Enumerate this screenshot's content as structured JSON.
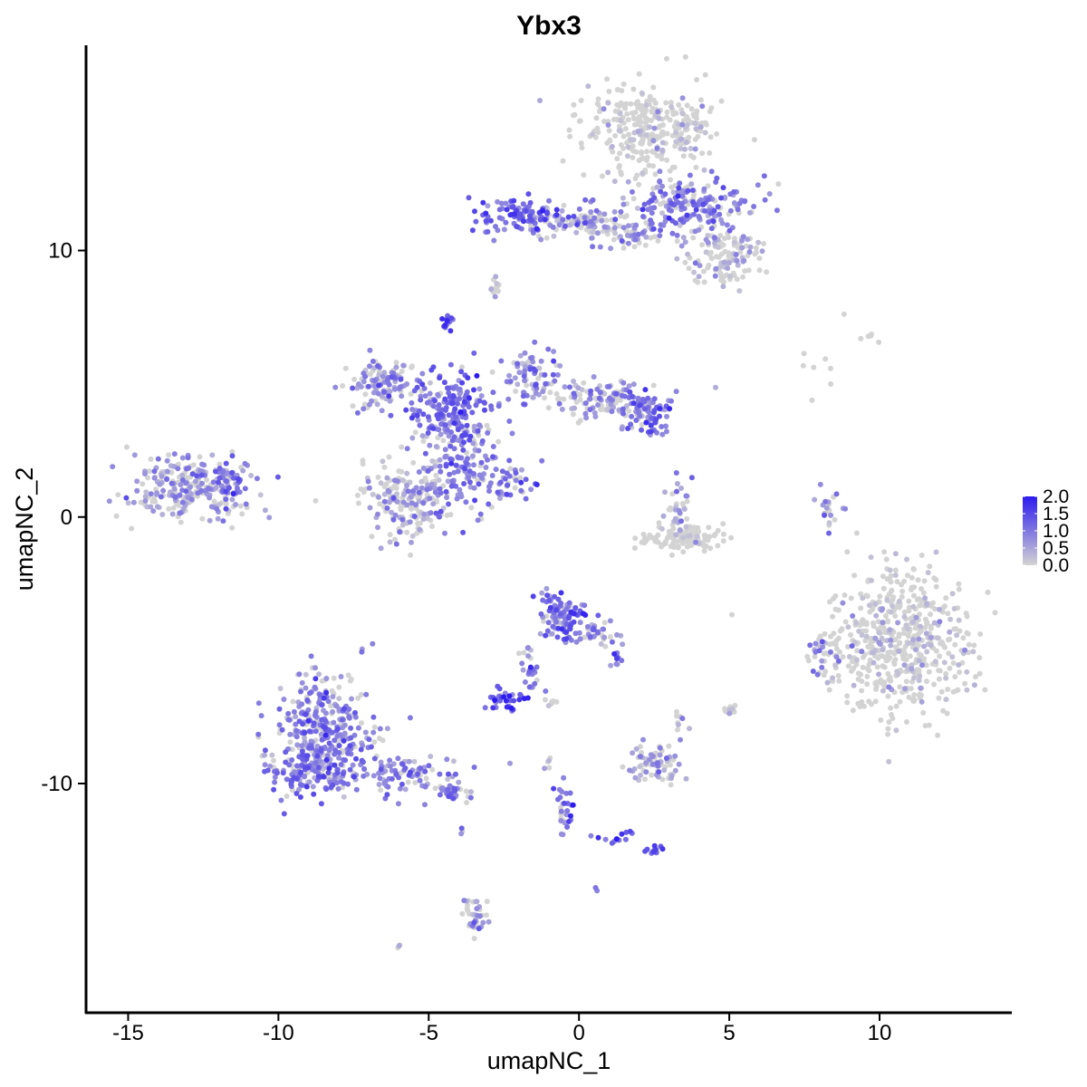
{
  "chart_data": {
    "type": "scatter",
    "title": "Ybx3",
    "xlabel": "umapNC_1",
    "ylabel": "umapNC_2",
    "xlim": [
      -16.4,
      14.4
    ],
    "ylim": [
      -18.6,
      17.7
    ],
    "x_ticks": [
      {
        "value": -15,
        "label": "-15"
      },
      {
        "value": -10,
        "label": "-10"
      },
      {
        "value": -5,
        "label": "-5"
      },
      {
        "value": 0,
        "label": "0"
      },
      {
        "value": 5,
        "label": "5"
      },
      {
        "value": 10,
        "label": "10"
      }
    ],
    "y_ticks": [
      {
        "value": -10,
        "label": "-10"
      },
      {
        "value": 0,
        "label": "0"
      },
      {
        "value": 10,
        "label": "10"
      }
    ],
    "color_scale": {
      "low": "#D3D3D3",
      "high": "#2D1BEF",
      "min": 0,
      "max": 2.0,
      "ticks": [
        {
          "value": 0.0,
          "label": "0.0"
        },
        {
          "value": 0.5,
          "label": "0.5"
        },
        {
          "value": 1.0,
          "label": "1.0"
        },
        {
          "value": 1.5,
          "label": "1.5"
        },
        {
          "value": 2.0,
          "label": "2.0"
        }
      ]
    },
    "legend_position": "right",
    "grid": false,
    "clusters": [
      {
        "cx": 2.3,
        "cy": 14.5,
        "sx": 1.2,
        "sy": 1.0,
        "n": 320,
        "mean": 0.15
      },
      {
        "cx": 3.8,
        "cy": 11.7,
        "sx": 1.3,
        "sy": 0.6,
        "n": 200,
        "mean": 0.9
      },
      {
        "cx": 4.8,
        "cy": 9.7,
        "sx": 0.7,
        "sy": 0.6,
        "n": 120,
        "mean": 0.4
      },
      {
        "cx": -1.8,
        "cy": 11.3,
        "sx": 0.9,
        "sy": 0.35,
        "n": 120,
        "mean": 1.1
      },
      {
        "cx": 0.5,
        "cy": 11.0,
        "sx": 0.9,
        "sy": 0.25,
        "n": 80,
        "mean": 0.6
      },
      {
        "cx": 1.8,
        "cy": 10.5,
        "sx": 0.6,
        "sy": 0.3,
        "n": 40,
        "mean": 0.7
      },
      {
        "cx": -2.8,
        "cy": 8.6,
        "sx": 0.1,
        "sy": 0.25,
        "n": 12,
        "mean": 0.3
      },
      {
        "cx": -4.4,
        "cy": 7.3,
        "sx": 0.12,
        "sy": 0.15,
        "n": 18,
        "mean": 1.3
      },
      {
        "cx": -6.6,
        "cy": 5.0,
        "sx": 0.7,
        "sy": 0.5,
        "n": 120,
        "mean": 0.7
      },
      {
        "cx": -4.2,
        "cy": 4.1,
        "sx": 0.8,
        "sy": 0.8,
        "n": 180,
        "mean": 1.1
      },
      {
        "cx": -3.8,
        "cy": 1.8,
        "sx": 0.8,
        "sy": 1.0,
        "n": 160,
        "mean": 0.9
      },
      {
        "cx": -5.7,
        "cy": 0.6,
        "sx": 0.8,
        "sy": 0.8,
        "n": 200,
        "mean": 0.55
      },
      {
        "cx": -1.5,
        "cy": 5.3,
        "sx": 0.5,
        "sy": 0.6,
        "n": 70,
        "mean": 0.8
      },
      {
        "cx": 0.8,
        "cy": 4.4,
        "sx": 1.1,
        "sy": 0.4,
        "n": 120,
        "mean": 0.7
      },
      {
        "cx": 2.2,
        "cy": 4.0,
        "sx": 0.5,
        "sy": 0.5,
        "n": 80,
        "mean": 1.0
      },
      {
        "cx": -2.3,
        "cy": 1.2,
        "sx": 0.5,
        "sy": 0.4,
        "n": 25,
        "mean": 0.9
      },
      {
        "cx": -13.0,
        "cy": 1.1,
        "sx": 1.1,
        "sy": 0.6,
        "n": 250,
        "mean": 0.65
      },
      {
        "cx": -11.7,
        "cy": 1.3,
        "sx": 0.3,
        "sy": 0.4,
        "n": 40,
        "mean": 1.0
      },
      {
        "cx": 3.4,
        "cy": -0.8,
        "sx": 0.8,
        "sy": 0.25,
        "n": 130,
        "mean": 0.05
      },
      {
        "cx": 3.3,
        "cy": 0.5,
        "sx": 0.25,
        "sy": 0.5,
        "n": 30,
        "mean": 0.7
      },
      {
        "cx": 8.3,
        "cy": 0.3,
        "sx": 0.25,
        "sy": 0.6,
        "n": 20,
        "mean": 0.6
      },
      {
        "cx": 10.7,
        "cy": -4.7,
        "sx": 1.3,
        "sy": 1.5,
        "n": 550,
        "mean": 0.2
      },
      {
        "cx": 8.1,
        "cy": -5.0,
        "sx": 0.2,
        "sy": 0.4,
        "n": 20,
        "mean": 0.9
      },
      {
        "cx": -8.5,
        "cy": -7.9,
        "sx": 0.9,
        "sy": 1.2,
        "n": 300,
        "mean": 0.9
      },
      {
        "cx": -8.8,
        "cy": -9.3,
        "sx": 1.0,
        "sy": 0.6,
        "n": 150,
        "mean": 0.95
      },
      {
        "cx": -5.7,
        "cy": -9.7,
        "sx": 1.0,
        "sy": 0.4,
        "n": 90,
        "mean": 0.9
      },
      {
        "cx": -4.2,
        "cy": -10.3,
        "sx": 0.35,
        "sy": 0.2,
        "n": 25,
        "mean": 1.0
      },
      {
        "cx": -0.6,
        "cy": -3.7,
        "sx": 0.45,
        "sy": 0.55,
        "n": 110,
        "mean": 1.0
      },
      {
        "cx": 0.7,
        "cy": -4.3,
        "sx": 0.4,
        "sy": 0.3,
        "n": 30,
        "mean": 0.8
      },
      {
        "cx": 1.3,
        "cy": -5.3,
        "sx": 0.12,
        "sy": 0.3,
        "n": 12,
        "mean": 1.1
      },
      {
        "cx": -1.6,
        "cy": -5.6,
        "sx": 0.2,
        "sy": 0.5,
        "n": 25,
        "mean": 1.0
      },
      {
        "cx": -2.5,
        "cy": -6.9,
        "sx": 0.3,
        "sy": 0.2,
        "n": 35,
        "mean": 1.3
      },
      {
        "cx": 2.3,
        "cy": -9.2,
        "sx": 0.4,
        "sy": 0.4,
        "n": 60,
        "mean": 0.5
      },
      {
        "cx": 3.1,
        "cy": -9.4,
        "sx": 0.2,
        "sy": 0.3,
        "n": 15,
        "mean": 0.6
      },
      {
        "cx": 5.0,
        "cy": -7.2,
        "sx": 0.12,
        "sy": 0.1,
        "n": 14,
        "mean": 0.4
      },
      {
        "cx": 3.3,
        "cy": -7.5,
        "sx": 0.08,
        "sy": 0.1,
        "n": 5,
        "mean": 0.5
      },
      {
        "cx": -0.5,
        "cy": -11.0,
        "sx": 0.2,
        "sy": 0.6,
        "n": 30,
        "mean": 1.0
      },
      {
        "cx": 2.4,
        "cy": -12.5,
        "sx": 0.18,
        "sy": 0.1,
        "n": 15,
        "mean": 1.2
      },
      {
        "cx": 1.3,
        "cy": -12.0,
        "sx": 0.4,
        "sy": 0.15,
        "n": 12,
        "mean": 1.1
      },
      {
        "cx": -3.5,
        "cy": -14.9,
        "sx": 0.25,
        "sy": 0.5,
        "n": 40,
        "mean": 0.5
      },
      {
        "cx": -3.9,
        "cy": -11.8,
        "sx": 0.05,
        "sy": 0.1,
        "n": 3,
        "mean": 0.7
      },
      {
        "cx": -6.0,
        "cy": -16.1,
        "sx": 0.06,
        "sy": 0.05,
        "n": 3,
        "mean": 0.5
      },
      {
        "cx": 0.6,
        "cy": -14.0,
        "sx": 0.05,
        "sy": 0.05,
        "n": 2,
        "mean": 1.2
      },
      {
        "cx": -1.0,
        "cy": -9.3,
        "sx": 0.1,
        "sy": 0.3,
        "n": 5,
        "mean": 0.3
      },
      {
        "cx": 7.8,
        "cy": 5.6,
        "sx": 0.6,
        "sy": 1.0,
        "n": 8,
        "mean": 0.0
      },
      {
        "cx": 9.7,
        "cy": 6.8,
        "sx": 0.3,
        "sy": 0.15,
        "n": 5,
        "mean": 0.0
      },
      {
        "cx": -1.0,
        "cy": -7.0,
        "sx": 0.2,
        "sy": 0.15,
        "n": 6,
        "mean": 0.3
      },
      {
        "cx": 3.3,
        "cy": -8.0,
        "sx": 0.15,
        "sy": 0.2,
        "n": 5,
        "mean": 0.5
      }
    ]
  }
}
